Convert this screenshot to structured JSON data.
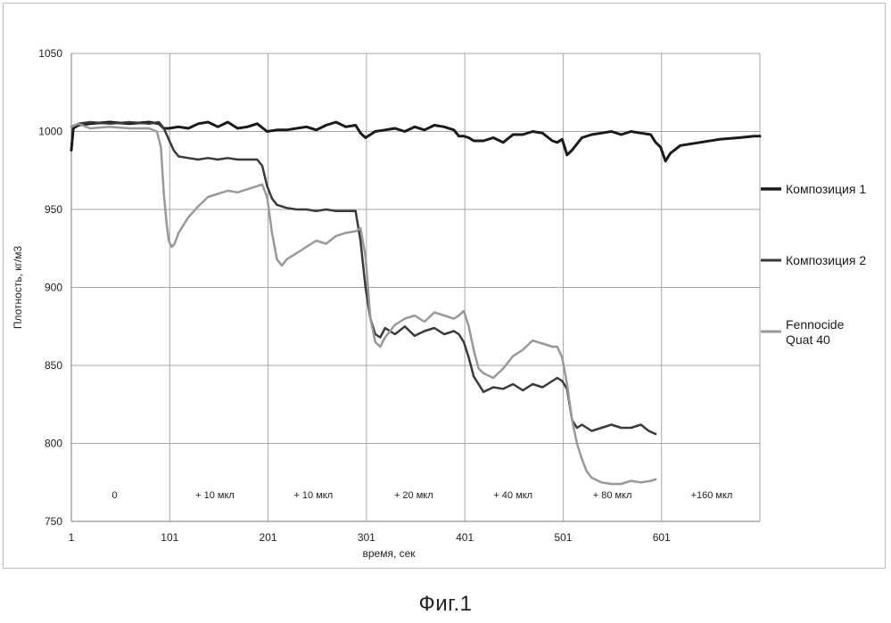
{
  "figure_caption": "Фиг.1",
  "chart_data": {
    "type": "line",
    "xlabel": "время, сек",
    "ylabel": "Плотность, кг/м3",
    "xlim": [
      1,
      701
    ],
    "ylim": [
      750,
      1050
    ],
    "x_ticks": [
      1,
      101,
      201,
      301,
      401,
      501,
      601
    ],
    "y_ticks": [
      750,
      800,
      850,
      900,
      950,
      1000,
      1050
    ],
    "grid": true,
    "legend_position": "right",
    "phase_labels": [
      {
        "label": "0",
        "x_center": 45
      },
      {
        "label": "+ 10 мкл",
        "x_center": 147
      },
      {
        "label": "+ 10 мкл",
        "x_center": 247
      },
      {
        "label": "+ 20 мкл",
        "x_center": 349
      },
      {
        "label": "+ 40 мкл",
        "x_center": 450
      },
      {
        "label": "+ 80 мкл",
        "x_center": 551
      },
      {
        "label": "+160 мкл",
        "x_center": 652
      }
    ],
    "series": [
      {
        "name": "Композиция 1",
        "color": "#1a1a1a",
        "width": 3,
        "x": [
          1,
          3,
          8,
          20,
          40,
          60,
          80,
          90,
          95,
          100,
          110,
          120,
          130,
          140,
          150,
          160,
          170,
          180,
          190,
          200,
          210,
          220,
          230,
          240,
          250,
          260,
          270,
          280,
          290,
          295,
          300,
          310,
          320,
          330,
          340,
          350,
          360,
          370,
          380,
          390,
          395,
          400,
          405,
          410,
          420,
          430,
          440,
          450,
          460,
          470,
          480,
          490,
          495,
          500,
          505,
          510,
          520,
          530,
          540,
          550,
          560,
          570,
          580,
          590,
          595,
          600,
          605,
          610,
          620,
          640,
          660,
          680,
          695,
          701
        ],
        "y": [
          988,
          1002,
          1004,
          1005,
          1006,
          1005,
          1006,
          1005,
          1002,
          1002,
          1003,
          1002,
          1005,
          1006,
          1003,
          1006,
          1002,
          1003,
          1005,
          1000,
          1001,
          1001,
          1002,
          1003,
          1001,
          1004,
          1006,
          1003,
          1004,
          999,
          996,
          1000,
          1001,
          1002,
          1000,
          1003,
          1001,
          1004,
          1003,
          1001,
          997,
          997,
          996,
          994,
          994,
          996,
          993,
          998,
          998,
          1000,
          999,
          994,
          993,
          995,
          985,
          988,
          996,
          998,
          999,
          1000,
          998,
          1000,
          999,
          998,
          993,
          990,
          981,
          986,
          991,
          993,
          995,
          996,
          997,
          997
        ]
      },
      {
        "name": "Композиция 2",
        "color": "#3a3a3a",
        "width": 2.5,
        "x": [
          1,
          8,
          20,
          40,
          60,
          80,
          90,
          95,
          100,
          105,
          110,
          120,
          130,
          140,
          150,
          160,
          170,
          180,
          190,
          195,
          200,
          205,
          210,
          220,
          230,
          240,
          250,
          260,
          270,
          280,
          290,
          295,
          300,
          305,
          310,
          315,
          320,
          330,
          340,
          350,
          360,
          370,
          380,
          390,
          395,
          400,
          405,
          410,
          415,
          420,
          430,
          440,
          450,
          460,
          470,
          480,
          490,
          495,
          500,
          505,
          510,
          515,
          520,
          530,
          540,
          550,
          560,
          570,
          580,
          588,
          595
        ],
        "y": [
          1003,
          1005,
          1006,
          1005,
          1006,
          1005,
          1006,
          1002,
          995,
          988,
          984,
          983,
          982,
          983,
          982,
          983,
          982,
          982,
          982,
          978,
          965,
          957,
          953,
          951,
          950,
          950,
          949,
          950,
          949,
          949,
          949,
          930,
          900,
          880,
          870,
          868,
          874,
          870,
          875,
          869,
          872,
          874,
          870,
          872,
          870,
          865,
          855,
          843,
          838,
          833,
          836,
          835,
          838,
          834,
          838,
          836,
          840,
          842,
          840,
          835,
          815,
          810,
          812,
          808,
          810,
          812,
          810,
          810,
          812,
          808,
          806
        ]
      },
      {
        "name": "Fennocide Quat 40",
        "color": "#999999",
        "width": 2.5,
        "x": [
          1,
          8,
          20,
          40,
          60,
          80,
          88,
          92,
          95,
          98,
          100,
          103,
          106,
          110,
          115,
          120,
          130,
          140,
          150,
          160,
          170,
          180,
          190,
          195,
          200,
          205,
          210,
          215,
          220,
          230,
          240,
          250,
          260,
          270,
          280,
          290,
          295,
          300,
          305,
          310,
          315,
          320,
          330,
          340,
          350,
          360,
          370,
          380,
          390,
          395,
          400,
          405,
          410,
          415,
          420,
          430,
          440,
          450,
          460,
          470,
          480,
          490,
          495,
          500,
          505,
          510,
          515,
          520,
          525,
          530,
          540,
          550,
          560,
          570,
          580,
          590,
          595
        ],
        "y": [
          1003,
          1005,
          1002,
          1003,
          1002,
          1002,
          1000,
          990,
          960,
          940,
          930,
          926,
          928,
          935,
          940,
          945,
          952,
          958,
          960,
          962,
          961,
          963,
          965,
          966,
          958,
          935,
          918,
          914,
          918,
          922,
          926,
          930,
          928,
          933,
          935,
          936,
          938,
          920,
          880,
          865,
          862,
          868,
          876,
          880,
          882,
          878,
          884,
          882,
          880,
          882,
          885,
          875,
          860,
          848,
          845,
          842,
          848,
          856,
          860,
          866,
          864,
          862,
          862,
          855,
          838,
          815,
          800,
          790,
          782,
          778,
          775,
          774,
          774,
          776,
          775,
          776,
          777
        ]
      }
    ]
  }
}
